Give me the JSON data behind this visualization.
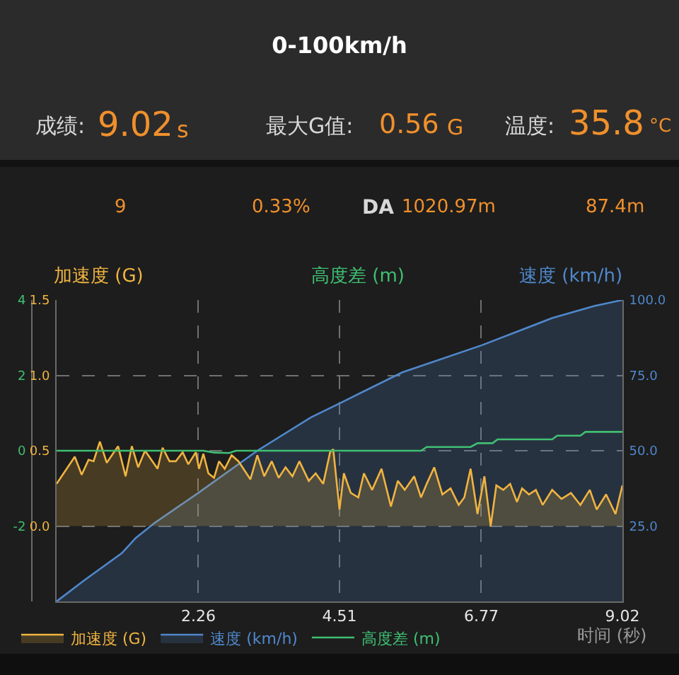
{
  "chart_data": {
    "type": "area",
    "title": "0-100km/h",
    "xlabel": "时间 (秒)",
    "ylabel": "加速度 (G)",
    "y2label": "速度 (km/h)",
    "y3label": "高度差 (m)",
    "annotations": [
      "成绩:",
      "9.02",
      "s",
      "最大G值:",
      "0.56",
      "G",
      "温度:",
      "35.8",
      "°C",
      "9",
      "0.33%",
      "DA",
      "1020.97m",
      "87.4m"
    ],
    "xlim": [
      0,
      9.02
    ],
    "xticks": [
      2.26,
      4.51,
      6.77,
      9.02
    ],
    "ylim": [
      -0.5,
      1.5
    ],
    "yticks": [
      {
        "value": 0,
        "label": "0.0"
      },
      0.5,
      {
        "value": 1,
        "label": "1.0"
      },
      1.5
    ],
    "y2lim": [
      0,
      100
    ],
    "y2ticks": [
      {
        "value": 25,
        "label": "25.0"
      },
      {
        "value": 50,
        "label": "50.0"
      },
      {
        "value": 75,
        "label": "75.0"
      },
      {
        "value": 100,
        "label": "100.0"
      }
    ],
    "y3lim": [
      -4,
      4
    ],
    "y3ticks": [
      -2,
      0,
      2,
      4
    ],
    "series": [
      {
        "name": "加速度 (G)",
        "color": "#f0b440",
        "x": [
          0,
          0.29,
          0.4,
          0.51,
          0.59,
          0.69,
          0.8,
          0.98,
          1.1,
          1.2,
          1.3,
          1.41,
          1.61,
          1.69,
          1.8,
          1.9,
          2.01,
          2.1,
          2.22,
          2.27,
          2.34,
          2.42,
          2.51,
          2.59,
          2.68,
          2.79,
          2.9,
          3.09,
          3.2,
          3.31,
          3.43,
          3.54,
          3.65,
          3.76,
          3.87,
          4.02,
          4.13,
          4.25,
          4.36,
          4.41,
          4.51,
          4.58,
          4.69,
          4.81,
          4.9,
          5.03,
          5.18,
          5.33,
          5.44,
          5.55,
          5.7,
          5.81,
          5.9,
          6.02,
          6.15,
          6.28,
          6.41,
          6.5,
          6.6,
          6.71,
          6.82,
          6.92,
          7.01,
          7.12,
          7.23,
          7.34,
          7.42,
          7.53,
          7.64,
          7.75,
          7.9,
          8.05,
          8.2,
          8.35,
          8.5,
          8.61,
          8.76,
          8.91,
          9.02
        ],
        "values": [
          0.28,
          0.46,
          0.34,
          0.44,
          0.43,
          0.56,
          0.42,
          0.53,
          0.33,
          0.53,
          0.39,
          0.5,
          0.38,
          0.52,
          0.43,
          0.43,
          0.49,
          0.41,
          0.49,
          0.38,
          0.48,
          0.35,
          0.32,
          0.43,
          0.38,
          0.47,
          0.43,
          0.31,
          0.47,
          0.33,
          0.43,
          0.32,
          0.39,
          0.33,
          0.43,
          0.3,
          0.35,
          0.28,
          0.49,
          0.51,
          0.11,
          0.35,
          0.22,
          0.19,
          0.35,
          0.24,
          0.38,
          0.13,
          0.3,
          0.24,
          0.33,
          0.19,
          0.28,
          0.39,
          0.21,
          0.25,
          0.14,
          0.19,
          0.38,
          0.08,
          0.33,
          0.0,
          0.27,
          0.24,
          0.28,
          0.16,
          0.25,
          0.21,
          0.24,
          0.14,
          0.24,
          0.18,
          0.22,
          0.14,
          0.24,
          0.11,
          0.21,
          0.08,
          0.27
        ]
      },
      {
        "name": "速度 (km/h)",
        "color": "#4f88cc",
        "axis": "y2",
        "x": [
          0,
          0.44,
          1.04,
          1.26,
          1.56,
          2.26,
          3.2,
          4.05,
          4.54,
          5.51,
          6.78,
          7.9,
          8.57,
          9.02
        ],
        "values": [
          0,
          7,
          16,
          21,
          26,
          36,
          50,
          61,
          66,
          76,
          85,
          94,
          98,
          100
        ]
      },
      {
        "name": "高度差 (m)",
        "color": "#3fbf72",
        "type": "line",
        "axis": "y3",
        "x": [
          0,
          2.34,
          2.51,
          2.75,
          2.86,
          5.81,
          5.9,
          6.6,
          6.71,
          6.95,
          7.03,
          7.9,
          7.98,
          8.35,
          8.43,
          9.02
        ],
        "values": [
          0,
          0,
          -0.05,
          -0.06,
          0,
          0,
          0.1,
          0.1,
          0.2,
          0.2,
          0.3,
          0.3,
          0.4,
          0.4,
          0.5,
          0.5
        ]
      }
    ],
    "grid": true,
    "legend": "bottom"
  }
}
